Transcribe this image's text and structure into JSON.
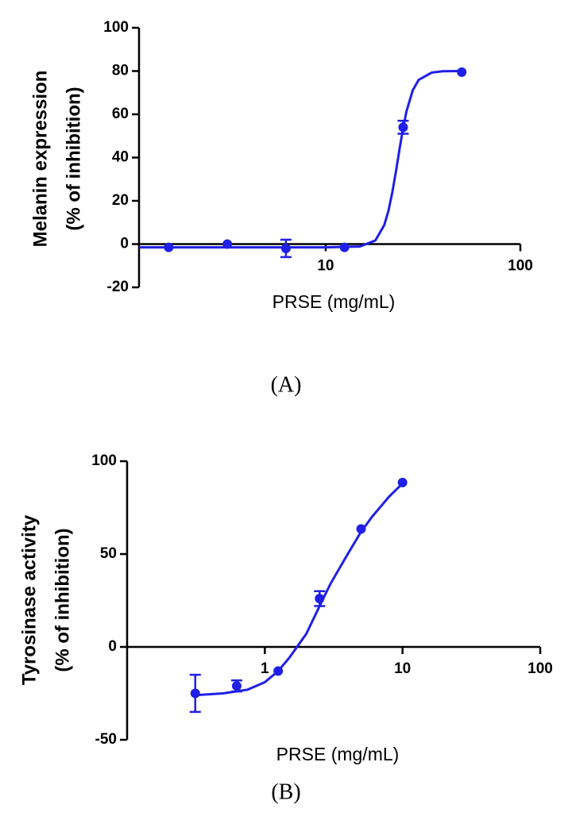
{
  "chart_data": [
    {
      "type": "scatter",
      "caption": "(A)",
      "xlabel": "PRSE (mg/mL)",
      "ylabel": [
        "Melanin expression",
        "(% of inhibition)"
      ],
      "log_x": true,
      "color": "#1f1fe6",
      "xlim": [
        1.1,
        100
      ],
      "xticks": [
        10,
        100
      ],
      "ylim": [
        -20,
        100
      ],
      "yticks": [
        -20,
        0,
        20,
        40,
        60,
        80,
        100
      ],
      "x": [
        1.5625,
        3.125,
        6.25,
        12.5,
        25,
        50
      ],
      "values": [
        -1.5,
        0,
        -2,
        -1.5,
        54,
        79.5
      ],
      "errors": [
        null,
        null,
        4,
        null,
        3,
        null
      ],
      "curve": {
        "x": [
          1.1,
          5,
          10,
          15,
          18,
          20,
          21,
          22,
          23,
          24,
          25,
          26,
          28,
          30,
          35,
          40,
          50
        ],
        "values": [
          -1.5,
          -1.5,
          -1.5,
          -1.1,
          1.7,
          8.8,
          15.3,
          23.9,
          34,
          44.4,
          53.7,
          61.3,
          71.1,
          75.9,
          79.3,
          79.9,
          80
        ]
      }
    },
    {
      "type": "scatter",
      "caption": "(B)",
      "xlabel": "PRSE (mg/mL)",
      "ylabel": [
        "Tyrosinase activity",
        "(% of inhibition)"
      ],
      "log_x": true,
      "color": "#1f1fe6",
      "xlim": [
        0.1,
        100
      ],
      "xticks": [
        1,
        10,
        100
      ],
      "ylim": [
        -50,
        100
      ],
      "yticks": [
        -50,
        0,
        50,
        100
      ],
      "x": [
        0.3125,
        0.625,
        1.25,
        2.5,
        5,
        10
      ],
      "values": [
        -25,
        -21,
        -13,
        26,
        63.5,
        88.5
      ],
      "errors": [
        10,
        3,
        null,
        4,
        null,
        null
      ],
      "curve": {
        "x": [
          0.3125,
          0.5,
          0.75,
          1,
          1.25,
          1.5,
          2,
          2.5,
          3,
          4,
          5,
          6,
          8,
          10
        ],
        "values": [
          -26,
          -25,
          -23,
          -19,
          -13,
          -6,
          7,
          22,
          34,
          50,
          62,
          70,
          81,
          88
        ]
      }
    }
  ]
}
